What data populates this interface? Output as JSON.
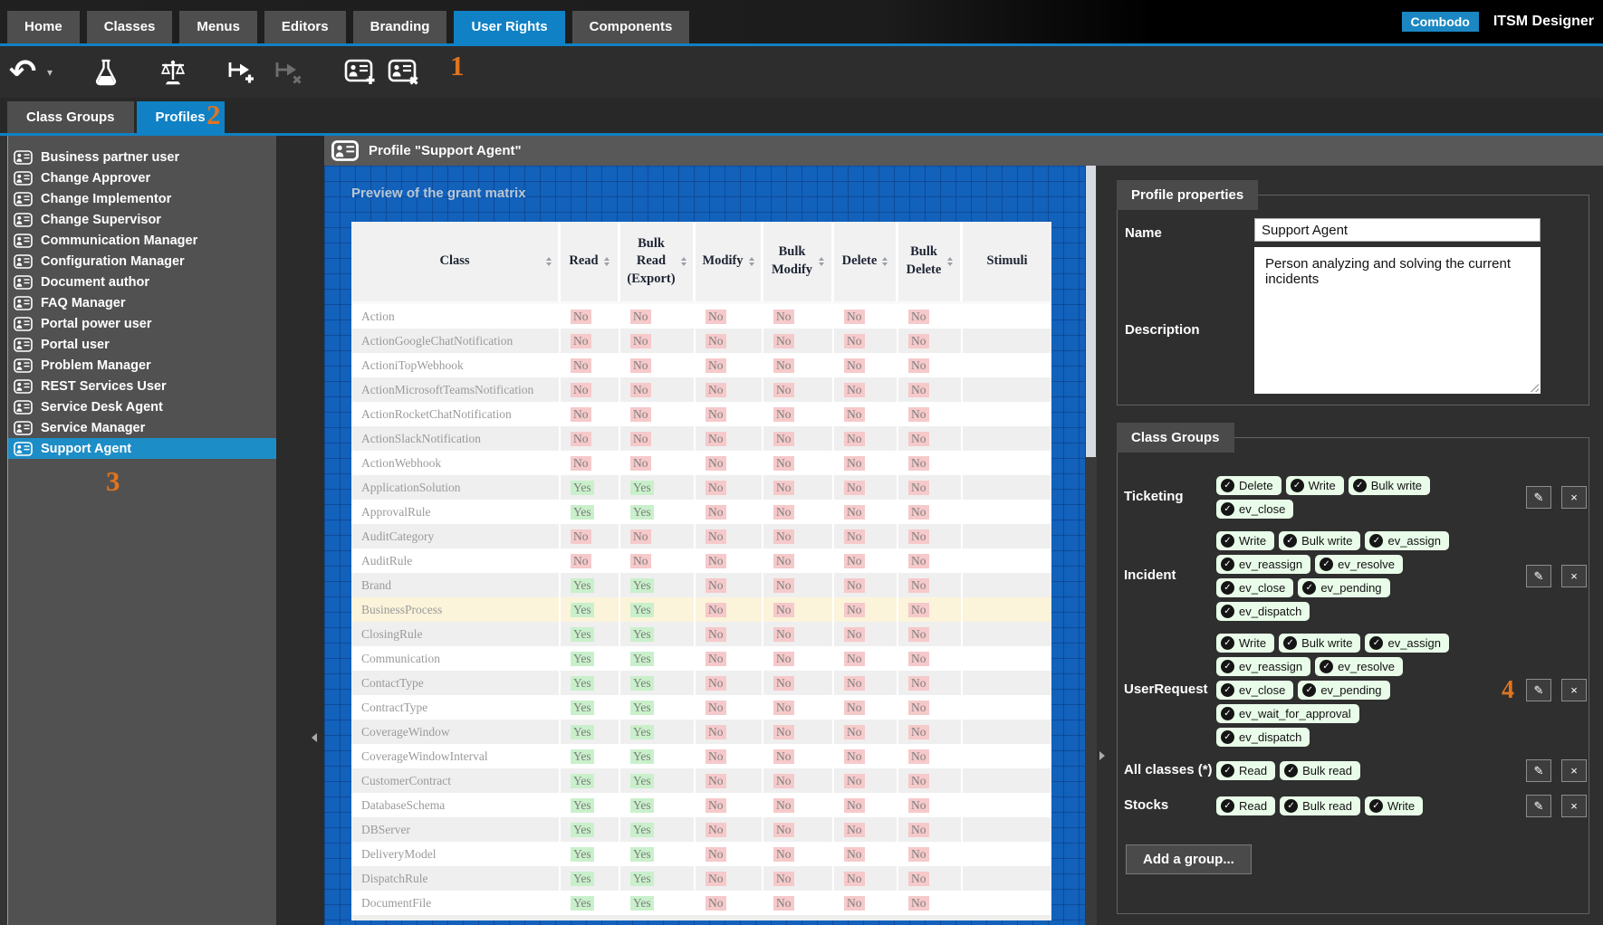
{
  "app": {
    "brand_badge": "Combodo",
    "title": "ITSM Designer"
  },
  "nav": {
    "tabs": [
      "Home",
      "Classes",
      "Menus",
      "Editors",
      "Branding",
      "User Rights",
      "Components"
    ],
    "active_tab": "User Rights"
  },
  "toolbar": {
    "buttons": [
      {
        "icon": "undo-icon",
        "enabled": true
      },
      {
        "icon": "undo-caret-icon",
        "enabled": true
      },
      {
        "icon": "flask-icon",
        "enabled": true
      },
      {
        "icon": "scales-icon",
        "enabled": true
      },
      {
        "icon": "transition-add-icon",
        "enabled": true
      },
      {
        "icon": "transition-remove-icon",
        "enabled": false
      },
      {
        "icon": "profile-add-icon",
        "enabled": true
      },
      {
        "icon": "profile-remove-icon",
        "enabled": true
      }
    ]
  },
  "subtabs": {
    "tabs": [
      "Class Groups",
      "Profiles"
    ],
    "active_tab": "Profiles"
  },
  "sidebar": {
    "profiles": [
      "Business partner user",
      "Change Approver",
      "Change Implementor",
      "Change Supervisor",
      "Communication Manager",
      "Configuration Manager",
      "Document author",
      "FAQ Manager",
      "Portal power user",
      "Portal user",
      "Problem Manager",
      "REST Services User",
      "Service Desk Agent",
      "Service Manager",
      "Support Agent"
    ],
    "selected": "Support Agent"
  },
  "main": {
    "panel_title": "Profile \"Support Agent\"",
    "grant_matrix": {
      "title": "Preview of the grant matrix",
      "columns": [
        {
          "label": "Class",
          "sortable": true
        },
        {
          "label": "Read",
          "sortable": true
        },
        {
          "label": "Bulk Read (Export)",
          "sortable": true
        },
        {
          "label": "Modify",
          "sortable": true
        },
        {
          "label": "Bulk Modify",
          "sortable": true
        },
        {
          "label": "Delete",
          "sortable": true
        },
        {
          "label": "Bulk Delete",
          "sortable": true
        },
        {
          "label": "Stimuli",
          "sortable": false
        }
      ],
      "rows": [
        {
          "class": "Action",
          "grants": [
            "No",
            "No",
            "No",
            "No",
            "No",
            "No"
          ],
          "stimuli": ""
        },
        {
          "class": "ActionGoogleChatNotification",
          "grants": [
            "No",
            "No",
            "No",
            "No",
            "No",
            "No"
          ],
          "stimuli": ""
        },
        {
          "class": "ActioniTopWebhook",
          "grants": [
            "No",
            "No",
            "No",
            "No",
            "No",
            "No"
          ],
          "stimuli": ""
        },
        {
          "class": "ActionMicrosoftTeamsNotification",
          "grants": [
            "No",
            "No",
            "No",
            "No",
            "No",
            "No"
          ],
          "stimuli": ""
        },
        {
          "class": "ActionRocketChatNotification",
          "grants": [
            "No",
            "No",
            "No",
            "No",
            "No",
            "No"
          ],
          "stimuli": ""
        },
        {
          "class": "ActionSlackNotification",
          "grants": [
            "No",
            "No",
            "No",
            "No",
            "No",
            "No"
          ],
          "stimuli": ""
        },
        {
          "class": "ActionWebhook",
          "grants": [
            "No",
            "No",
            "No",
            "No",
            "No",
            "No"
          ],
          "stimuli": ""
        },
        {
          "class": "ApplicationSolution",
          "grants": [
            "Yes",
            "Yes",
            "No",
            "No",
            "No",
            "No"
          ],
          "stimuli": ""
        },
        {
          "class": "ApprovalRule",
          "grants": [
            "Yes",
            "Yes",
            "No",
            "No",
            "No",
            "No"
          ],
          "stimuli": ""
        },
        {
          "class": "AuditCategory",
          "grants": [
            "No",
            "No",
            "No",
            "No",
            "No",
            "No"
          ],
          "stimuli": ""
        },
        {
          "class": "AuditRule",
          "grants": [
            "No",
            "No",
            "No",
            "No",
            "No",
            "No"
          ],
          "stimuli": ""
        },
        {
          "class": "Brand",
          "grants": [
            "Yes",
            "Yes",
            "No",
            "No",
            "No",
            "No"
          ],
          "stimuli": ""
        },
        {
          "class": "BusinessProcess",
          "grants": [
            "Yes",
            "Yes",
            "No",
            "No",
            "No",
            "No"
          ],
          "stimuli": "",
          "highlighted": true
        },
        {
          "class": "ClosingRule",
          "grants": [
            "Yes",
            "Yes",
            "No",
            "No",
            "No",
            "No"
          ],
          "stimuli": ""
        },
        {
          "class": "Communication",
          "grants": [
            "Yes",
            "Yes",
            "No",
            "No",
            "No",
            "No"
          ],
          "stimuli": ""
        },
        {
          "class": "ContactType",
          "grants": [
            "Yes",
            "Yes",
            "No",
            "No",
            "No",
            "No"
          ],
          "stimuli": ""
        },
        {
          "class": "ContractType",
          "grants": [
            "Yes",
            "Yes",
            "No",
            "No",
            "No",
            "No"
          ],
          "stimuli": ""
        },
        {
          "class": "CoverageWindow",
          "grants": [
            "Yes",
            "Yes",
            "No",
            "No",
            "No",
            "No"
          ],
          "stimuli": ""
        },
        {
          "class": "CoverageWindowInterval",
          "grants": [
            "Yes",
            "Yes",
            "No",
            "No",
            "No",
            "No"
          ],
          "stimuli": ""
        },
        {
          "class": "CustomerContract",
          "grants": [
            "Yes",
            "Yes",
            "No",
            "No",
            "No",
            "No"
          ],
          "stimuli": ""
        },
        {
          "class": "DatabaseSchema",
          "grants": [
            "Yes",
            "Yes",
            "No",
            "No",
            "No",
            "No"
          ],
          "stimuli": ""
        },
        {
          "class": "DBServer",
          "grants": [
            "Yes",
            "Yes",
            "No",
            "No",
            "No",
            "No"
          ],
          "stimuli": ""
        },
        {
          "class": "DeliveryModel",
          "grants": [
            "Yes",
            "Yes",
            "No",
            "No",
            "No",
            "No"
          ],
          "stimuli": ""
        },
        {
          "class": "DispatchRule",
          "grants": [
            "Yes",
            "Yes",
            "No",
            "No",
            "No",
            "No"
          ],
          "stimuli": ""
        },
        {
          "class": "DocumentFile",
          "grants": [
            "Yes",
            "Yes",
            "No",
            "No",
            "No",
            "No"
          ],
          "stimuli": ""
        }
      ]
    }
  },
  "properties": {
    "section_title": "Profile properties",
    "name_label": "Name",
    "name_value": "Support Agent",
    "description_label": "Description",
    "description_value": "Person analyzing and solving the current incidents"
  },
  "class_groups": {
    "section_title": "Class Groups",
    "add_button_label": "Add a group...",
    "groups": [
      {
        "name": "Ticketing",
        "permissions": [
          "Delete",
          "Write",
          "Bulk write",
          "ev_close"
        ]
      },
      {
        "name": "Incident",
        "permissions": [
          "Write",
          "Bulk write",
          "ev_assign",
          "ev_reassign",
          "ev_resolve",
          "ev_close",
          "ev_pending",
          "ev_dispatch"
        ]
      },
      {
        "name": "UserRequest",
        "permissions": [
          "Write",
          "Bulk write",
          "ev_assign",
          "ev_reassign",
          "ev_resolve",
          "ev_close",
          "ev_pending",
          "ev_wait_for_approval",
          "ev_dispatch"
        ],
        "annotation": "4"
      },
      {
        "name": "All classes (*)",
        "permissions": [
          "Read",
          "Bulk read"
        ]
      },
      {
        "name": "Stocks",
        "permissions": [
          "Read",
          "Bulk read",
          "Write"
        ]
      }
    ]
  },
  "annotations": {
    "step1": "1",
    "step2": "2",
    "step3": "3",
    "step4": "4"
  },
  "colors": {
    "accent_blue": "#1081c4",
    "selection_blue": "#1d8dc7",
    "annotation_orange": "#e0741e",
    "blueprint_blue": "#1261bb",
    "grant_yes_bg": "#c9f0cb",
    "grant_no_bg": "#f6c9ca",
    "badge_green_bg": "#e9fce9",
    "highlight_row_bg": "#fbf3da"
  }
}
